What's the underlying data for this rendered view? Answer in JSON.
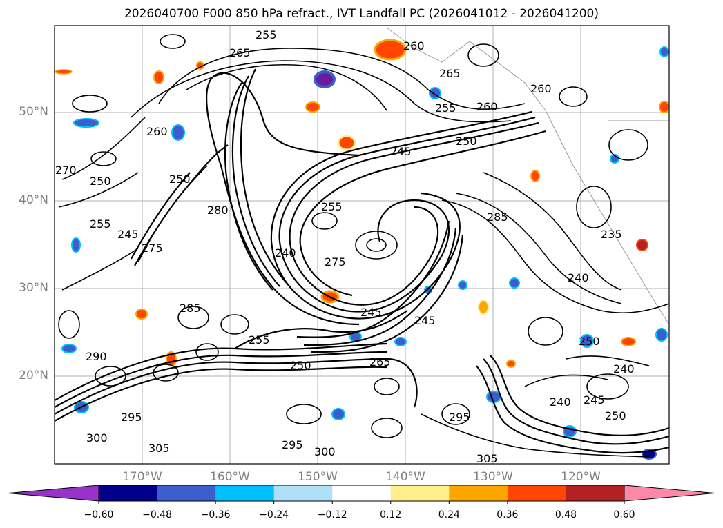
{
  "title": "2026040700 F000 850 hPa refract., IVT Landfall PC (2026041012 - 2026041200)",
  "map": {
    "lat_labels": [
      "50°N",
      "40°N",
      "30°N",
      "20°N"
    ],
    "lon_labels": [
      "170°W",
      "160°W",
      "150°W",
      "140°W",
      "130°W",
      "120°W"
    ],
    "extent": {
      "lon_min": -180,
      "lon_max": -110,
      "lat_min": 10,
      "lat_max": 60
    },
    "gridlines": true,
    "contour_labels": [
      "255",
      "265",
      "260",
      "255",
      "260",
      "265",
      "260",
      "250",
      "245",
      "250",
      "260",
      "255",
      "270",
      "250",
      "255",
      "245",
      "275",
      "240",
      "275",
      "285",
      "280",
      "240",
      "235",
      "240",
      "250",
      "240",
      "245",
      "250",
      "255",
      "265",
      "285",
      "290",
      "295",
      "300",
      "305",
      "295",
      "300",
      "305",
      "295",
      "245",
      "250",
      "245"
    ]
  },
  "colorbar": {
    "ticks": [
      "−0.60",
      "−0.48",
      "−0.36",
      "−0.24",
      "−0.12",
      "0.12",
      "0.24",
      "0.36",
      "0.48",
      "0.60"
    ],
    "colors": [
      "#9932cc",
      "#00008b",
      "#3a5fcd",
      "#00bfff",
      "#b0e0f8",
      "#ffffff",
      "#fff08c",
      "#ffa500",
      "#ff4500",
      "#b22222",
      "#ff88a8"
    ],
    "extend": "both"
  }
}
